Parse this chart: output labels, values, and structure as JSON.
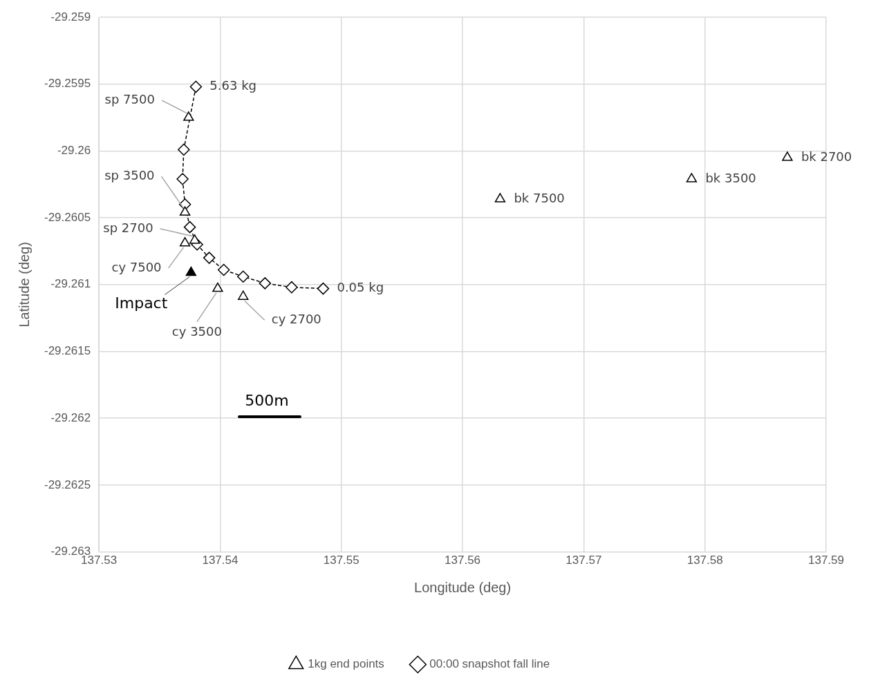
{
  "chart_data": {
    "type": "scatter",
    "xlabel": "Longitude (deg)",
    "ylabel": "Latitude (deg)",
    "xlim": [
      137.53,
      137.59
    ],
    "xticks": [
      137.53,
      137.54,
      137.55,
      137.56,
      137.57,
      137.58,
      137.59
    ],
    "ylim": [
      -29.263,
      -29.259
    ],
    "yticks": [
      -29.263,
      -29.2625,
      -29.262,
      -29.2615,
      -29.261,
      -29.2605,
      -29.26,
      -29.2595,
      -29.259
    ],
    "grid": true,
    "legend": "bottom",
    "series": [
      {
        "name": "1kg end points",
        "type": "scatter",
        "marker": "triangle",
        "color": "#000000",
        "x": [
          137.5374,
          137.5371,
          137.5379,
          137.5371,
          137.5398,
          137.5419,
          137.5631,
          137.5789,
          137.5868
        ],
        "values": [
          -29.25975,
          -29.26046,
          -29.26067,
          -29.26069,
          -29.26103,
          -29.26109,
          -29.26036,
          -29.26021,
          -29.26005
        ]
      },
      {
        "type": "scatter",
        "marker": "triangle",
        "color": "#000000",
        "colors": [
          "#000000"
        ],
        "x": [
          137.5376
        ],
        "values": [
          -29.26091
        ]
      },
      {
        "name": "00:00 snapshot fall line",
        "type": "line",
        "marker": "diamond",
        "line_style": "dashed",
        "color": "#000000",
        "x": [
          137.538,
          137.537,
          137.5369,
          137.5371,
          137.5375,
          137.5381,
          137.5391,
          137.5403,
          137.5419,
          137.5437,
          137.5459,
          137.5485
        ],
        "values": [
          -29.25952,
          -29.25999,
          -29.26021,
          -29.2604,
          -29.26057,
          -29.2607,
          -29.2608,
          -29.26089,
          -29.26094,
          -29.26099,
          -29.26102,
          -29.26103
        ]
      }
    ],
    "annotations": [
      {
        "text": "5.63 kg",
        "x": 137.538,
        "y": -29.25952
      },
      {
        "text": "0.05 kg",
        "x": 137.5485,
        "y": -29.26103
      },
      {
        "text": "sp 7500",
        "x": 137.5374,
        "y": -29.25975
      },
      {
        "text": "sp 3500",
        "x": 137.5371,
        "y": -29.26046
      },
      {
        "text": "sp 2700",
        "x": 137.5379,
        "y": -29.26067
      },
      {
        "text": "cy 7500",
        "x": 137.5371,
        "y": -29.26069
      },
      {
        "text": "Impact",
        "x": 137.5376,
        "y": -29.26091
      },
      {
        "text": "cy 3500",
        "x": 137.5398,
        "y": -29.26103
      },
      {
        "text": "cy 2700",
        "x": 137.5419,
        "y": -29.26109
      },
      {
        "text": "bk 7500",
        "x": 137.5631,
        "y": -29.26036
      },
      {
        "text": "bk 3500",
        "x": 137.5789,
        "y": -29.26021
      },
      {
        "text": "bk 2700",
        "x": 137.5868,
        "y": -29.26005
      },
      "500m"
    ]
  }
}
